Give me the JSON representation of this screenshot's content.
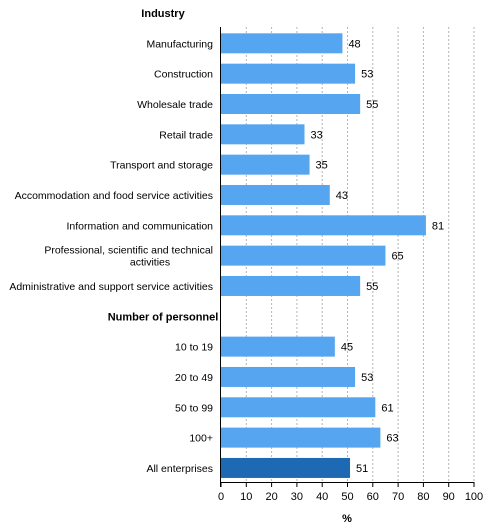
{
  "chart_data": {
    "type": "bar",
    "orientation": "horizontal",
    "xlabel": "%",
    "xlim": [
      0,
      100
    ],
    "xticks": [
      0,
      10,
      20,
      30,
      40,
      50,
      60,
      70,
      80,
      90,
      100
    ],
    "grid": true,
    "colors": {
      "bar": "#55a5f0",
      "highlight": "#1e69b4"
    },
    "groups": [
      {
        "label": "Industry",
        "items": [
          {
            "category": "Manufacturing",
            "value": 48
          },
          {
            "category": "Construction",
            "value": 53
          },
          {
            "category": "Wholesale trade",
            "value": 55
          },
          {
            "category": "Retail trade",
            "value": 33
          },
          {
            "category": "Transport and storage",
            "value": 35
          },
          {
            "category": "Accommodation and food service activities",
            "value": 43
          },
          {
            "category": "Information and communication",
            "value": 81
          },
          {
            "category": "Professional, scientific and technical activities",
            "category_lines": [
              "Professional, scientific and technical",
              "activities"
            ],
            "value": 65
          },
          {
            "category": "Administrative and support service activities",
            "value": 55
          }
        ]
      },
      {
        "label": "Number of personnel",
        "items": [
          {
            "category": "10 to 19",
            "value": 45
          },
          {
            "category": "20 to 49",
            "value": 53
          },
          {
            "category": "50 to 99",
            "value": 61
          },
          {
            "category": "100+",
            "value": 63
          }
        ]
      },
      {
        "label": "",
        "items": [
          {
            "category": "All enterprises",
            "value": 51,
            "highlight": true
          }
        ]
      }
    ]
  }
}
